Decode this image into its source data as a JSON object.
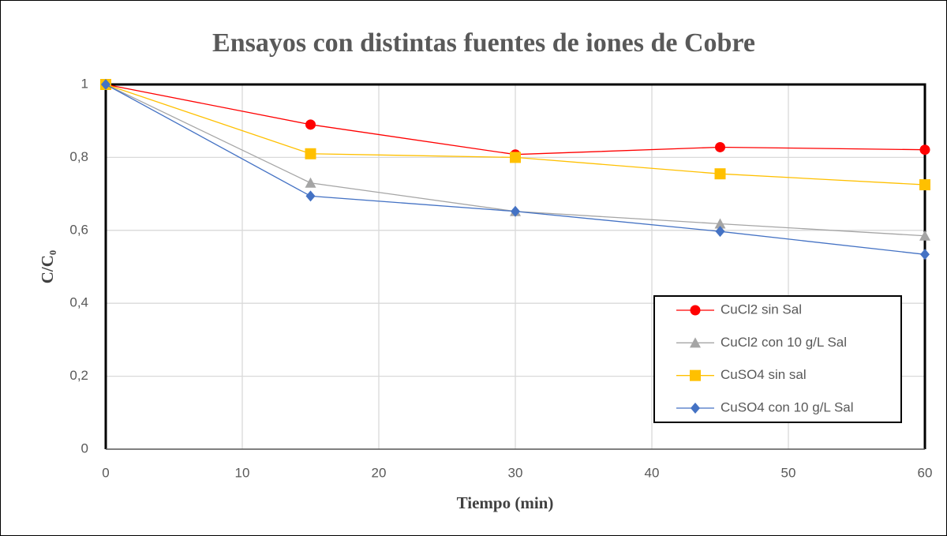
{
  "chart_data": {
    "type": "line",
    "title": "Ensayos con distintas fuentes de iones de Cobre",
    "xlabel": "Tiempo (min)",
    "ylabel": "C/C₀",
    "x": [
      0,
      15,
      30,
      45,
      60
    ],
    "series": [
      {
        "name": "CuCl2 sin Sal",
        "color": "#ff0000",
        "marker": "circle",
        "values": [
          1,
          0.89,
          0.808,
          0.828,
          0.821
        ]
      },
      {
        "name": "CuCl2 con 10 g/L Sal",
        "color": "#a5a5a5",
        "marker": "triangle",
        "values": [
          1,
          0.73,
          0.652,
          0.618,
          0.585
        ]
      },
      {
        "name": "CuSO4 sin sal",
        "color": "#ffc000",
        "marker": "square",
        "values": [
          1,
          0.81,
          0.8,
          0.755,
          0.725
        ]
      },
      {
        "name": "CuSO4 con 10 g/L Sal",
        "color": "#4472c4",
        "marker": "diamond",
        "values": [
          1,
          0.694,
          0.652,
          0.597,
          0.534
        ]
      }
    ],
    "xlim": [
      0,
      60
    ],
    "xticks": [
      0,
      10,
      20,
      30,
      40,
      50,
      60
    ],
    "ylim": [
      0,
      1
    ],
    "yticks": [
      0,
      {
        "value": 0.2,
        "label": "0,2"
      },
      {
        "value": 0.4,
        "label": "0,4"
      },
      {
        "value": 0.6,
        "label": "0,6"
      },
      {
        "value": 0.8,
        "label": "0,8"
      },
      1
    ],
    "grid": true,
    "legend": "lower right"
  }
}
